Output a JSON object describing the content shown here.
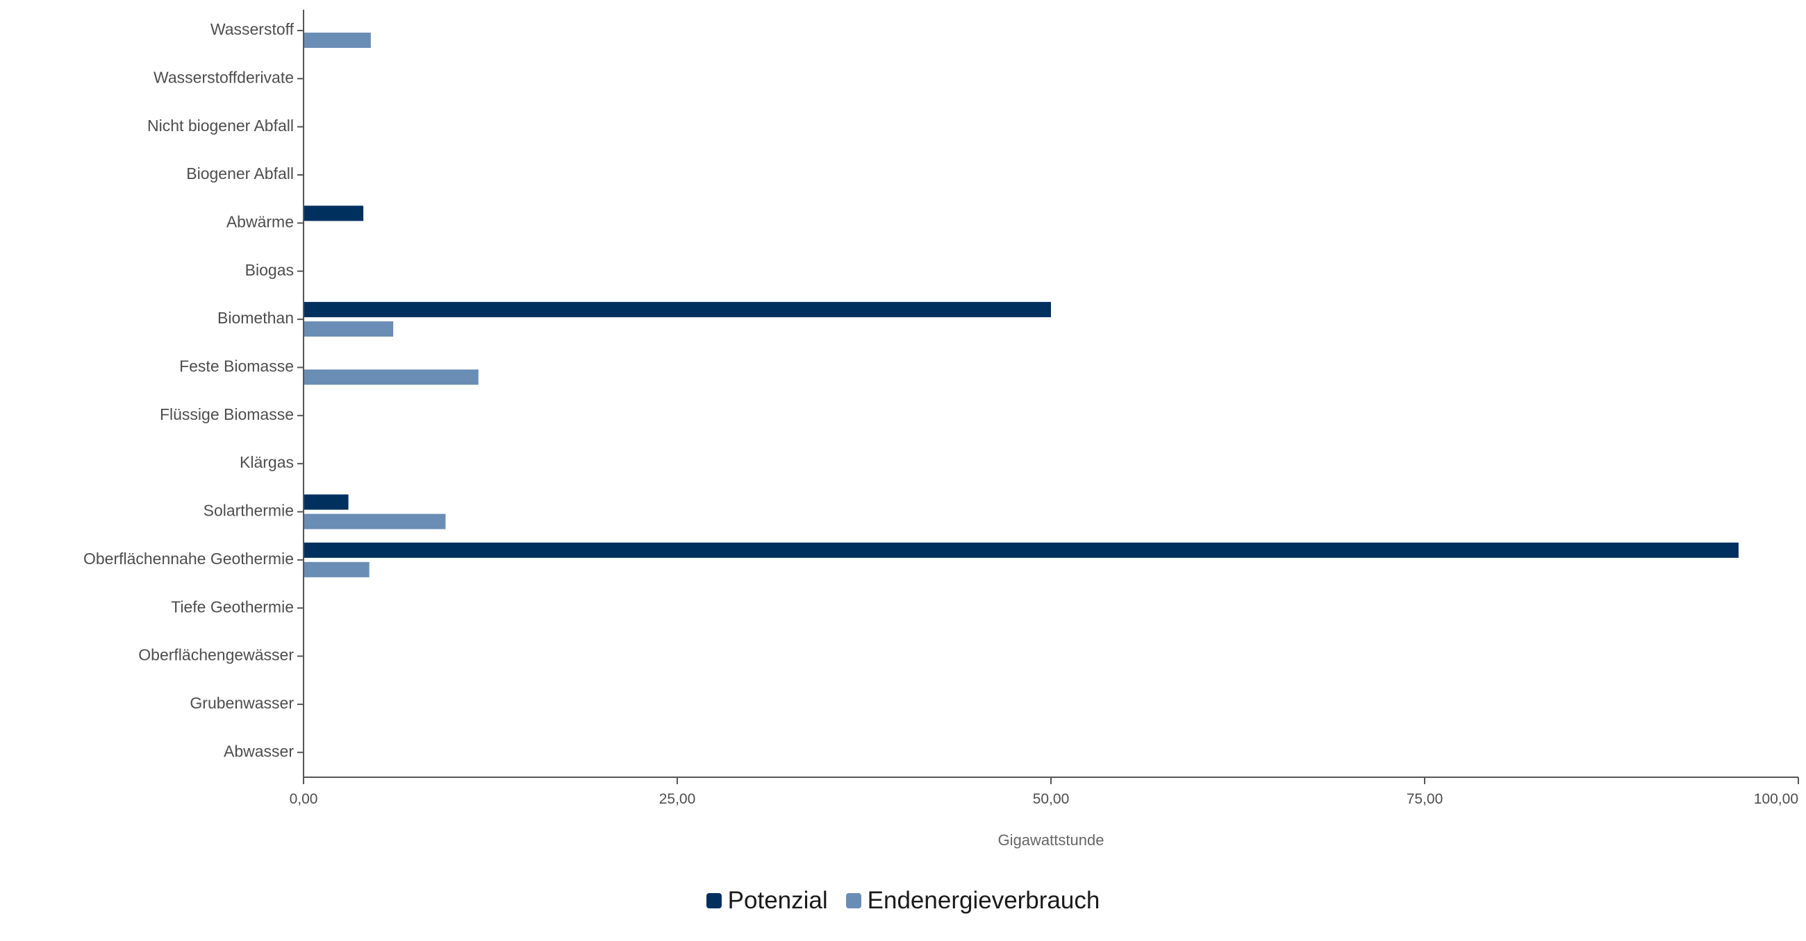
{
  "chart_data": {
    "type": "bar",
    "orientation": "horizontal",
    "categories": [
      "Wasserstoff",
      "Wasserstoffderivate",
      "Nicht biogener Abfall",
      "Biogener Abfall",
      "Abwärme",
      "Biogas",
      "Biomethan",
      "Feste Biomasse",
      "Flüssige Biomasse",
      "Klärgas",
      "Solarthermie",
      "Oberflächennahe Geothermie",
      "Tiefe Geothermie",
      "Oberflächengewässer",
      "Grubenwasser",
      "Abwasser"
    ],
    "series": [
      {
        "name": "Potenzial",
        "color": "#00305e",
        "values": [
          0,
          0,
          0,
          0,
          4.0,
          0,
          50.0,
          0,
          0,
          0,
          3.0,
          96.0,
          0,
          0,
          0,
          0
        ]
      },
      {
        "name": "Endenergieverbrauch",
        "color": "#6a8db5",
        "values": [
          4.5,
          0,
          0,
          0,
          0,
          0,
          6.0,
          11.7,
          0,
          0,
          9.5,
          4.4,
          0,
          0,
          0,
          0
        ]
      }
    ],
    "xlim": [
      0,
      100
    ],
    "xticks": [
      "0,00",
      "25,00",
      "50,00",
      "75,00",
      "100,00"
    ],
    "xlabel": "Gigawattstunde",
    "ylabel": "",
    "legend_position": "bottom-center",
    "grid": false
  }
}
